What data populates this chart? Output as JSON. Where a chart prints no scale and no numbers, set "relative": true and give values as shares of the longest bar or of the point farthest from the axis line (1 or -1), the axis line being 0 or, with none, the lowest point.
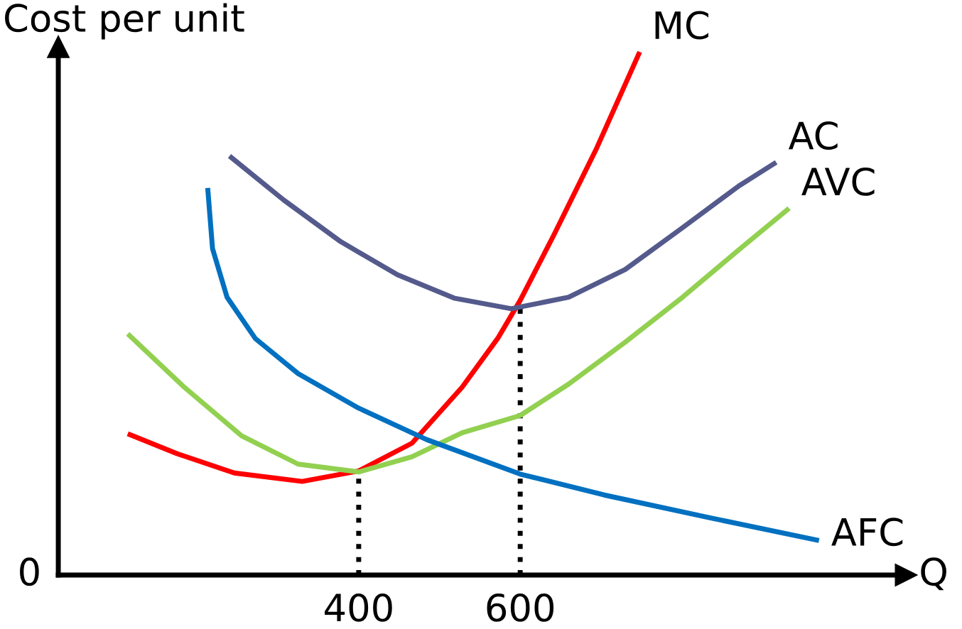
{
  "chart_data": {
    "type": "line",
    "relative": true,
    "ylabel": "Cost per unit",
    "xlabel": "Q",
    "annotations": [
      "0"
    ],
    "xlim": [
      28,
      1078
    ],
    "xticks": [
      400,
      600
    ],
    "legend": false,
    "marker": "none",
    "line_style": "solid",
    "series": [
      {
        "name": "MC",
        "color": "#ff0000",
        "x": [
          114,
          175,
          246,
          330,
          400,
          466,
          528,
          572,
          600,
          642,
          695,
          748
        ],
        "values": [
          0.27,
          0.232,
          0.195,
          0.179,
          0.199,
          0.252,
          0.359,
          0.452,
          0.525,
          0.651,
          0.817,
          1.0
        ]
      },
      {
        "name": "AC",
        "color": "#545a8c",
        "x": [
          240,
          307,
          378,
          448,
          519,
          589,
          660,
          730,
          801,
          871,
          917
        ],
        "values": [
          0.801,
          0.717,
          0.637,
          0.574,
          0.529,
          0.509,
          0.531,
          0.584,
          0.664,
          0.744,
          0.789
        ]
      },
      {
        "name": "AVC",
        "color": "#92d050",
        "x": [
          114,
          184,
          255,
          325,
          400,
          466,
          528,
          600,
          660,
          730,
          801,
          871,
          933
        ],
        "values": [
          0.461,
          0.359,
          0.266,
          0.212,
          0.197,
          0.226,
          0.272,
          0.305,
          0.365,
          0.445,
          0.531,
          0.622,
          0.701
        ]
      },
      {
        "name": "AFC",
        "color": "#0070c0",
        "x": [
          213,
          219,
          237,
          272,
          325,
          400,
          484,
          600,
          704,
          836,
          970
        ],
        "values": [
          0.74,
          0.624,
          0.531,
          0.452,
          0.385,
          0.319,
          0.259,
          0.193,
          0.153,
          0.109,
          0.066
        ]
      }
    ],
    "ref_lines": [
      {
        "axis": "x",
        "value": 400,
        "color": "#000000",
        "line_style": "dotted"
      },
      {
        "axis": "x",
        "value": 600,
        "color": "#000000",
        "line_style": "dotted"
      }
    ]
  }
}
